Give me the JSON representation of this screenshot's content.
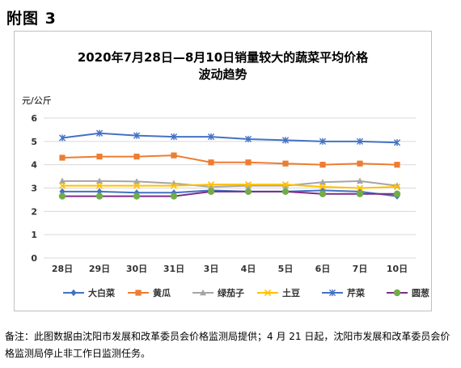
{
  "figure_label": "附图 3",
  "note": "备注：此图数据由沈阳市发展和改革委员会价格监测局提供；4 月 21 日起，沈阳市发展和改革委员会价格监测局停止非工作日监测任务。",
  "chart_data": {
    "type": "line",
    "title_line1": "2020年7月28日—8月10日销量较大的蔬菜平均价格",
    "title_line2": "波动趋势",
    "ylabel": "元/公斤",
    "xlabel": "",
    "categories": [
      "28日",
      "29日",
      "30日",
      "31日",
      "3日",
      "4日",
      "5日",
      "6日",
      "7日",
      "10日"
    ],
    "ylim": [
      0,
      6
    ],
    "yticks": [
      0,
      1,
      2,
      3,
      4,
      5,
      6
    ],
    "grid": "horizontal",
    "legend_position": "bottom",
    "series": [
      {
        "name": "大白菜",
        "color": "#4472c4",
        "marker": "diamond",
        "values": [
          2.85,
          2.85,
          2.8,
          2.8,
          2.9,
          2.85,
          2.85,
          2.9,
          2.85,
          2.65
        ]
      },
      {
        "name": "黄瓜",
        "color": "#ed7d31",
        "marker": "square",
        "values": [
          4.3,
          4.35,
          4.35,
          4.4,
          4.1,
          4.1,
          4.05,
          4.0,
          4.05,
          4.0
        ]
      },
      {
        "name": "绿茄子",
        "color": "#a5a5a5",
        "marker": "triangle",
        "values": [
          3.3,
          3.3,
          3.28,
          3.2,
          3.05,
          3.1,
          3.1,
          3.25,
          3.3,
          3.1
        ]
      },
      {
        "name": "土豆",
        "color": "#ffc000",
        "marker": "x",
        "values": [
          3.1,
          3.1,
          3.1,
          3.1,
          3.15,
          3.15,
          3.15,
          3.05,
          3.0,
          3.05
        ]
      },
      {
        "name": "芹菜",
        "color": "#4472c4",
        "marker": "star",
        "values": [
          5.15,
          5.35,
          5.25,
          5.2,
          5.2,
          5.1,
          5.05,
          5.0,
          5.0,
          4.95
        ]
      },
      {
        "name": "圆葱",
        "color": "#70ad47",
        "marker": "circle",
        "line_color": "#7b2c8a",
        "values": [
          2.65,
          2.65,
          2.65,
          2.65,
          2.85,
          2.85,
          2.85,
          2.75,
          2.75,
          2.75
        ]
      }
    ]
  }
}
